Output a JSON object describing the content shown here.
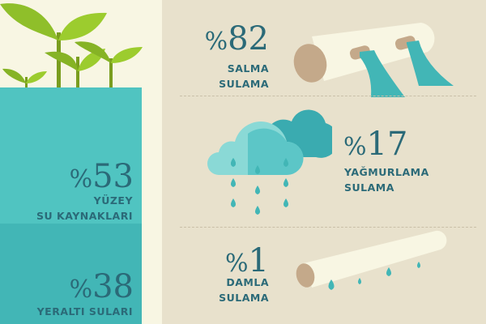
{
  "left": {
    "surface": {
      "percent": "53",
      "symbol": "%",
      "label_line1": "YÜZEY",
      "label_line2": "SU KAYNAKLARI"
    },
    "ground": {
      "percent": "38",
      "symbol": "%",
      "label_line1": "YERALTI SULARI"
    }
  },
  "right": {
    "flood": {
      "percent": "82",
      "symbol": "%",
      "label_line1": "SALMA",
      "label_line2": "SULAMA",
      "icon": "pipe-water-icon"
    },
    "sprinkler": {
      "percent": "17",
      "symbol": "%",
      "label_line1": "YAĞMURLAMA",
      "label_line2": "SULAMA",
      "icon": "rain-cloud-icon"
    },
    "drip": {
      "percent": "1",
      "symbol": "%",
      "label_line1": "DAMLA",
      "label_line2": "SULAMA",
      "icon": "drip-pipe-icon"
    }
  },
  "colors": {
    "teal_surface": "#50c4c1",
    "teal_ground": "#42b6b6",
    "text": "#2b6a78",
    "beige": "#e8e1cc",
    "cream": "#f8f6e3",
    "leaf": "#8fbf2a",
    "pipe_end": "#c4a98a"
  }
}
